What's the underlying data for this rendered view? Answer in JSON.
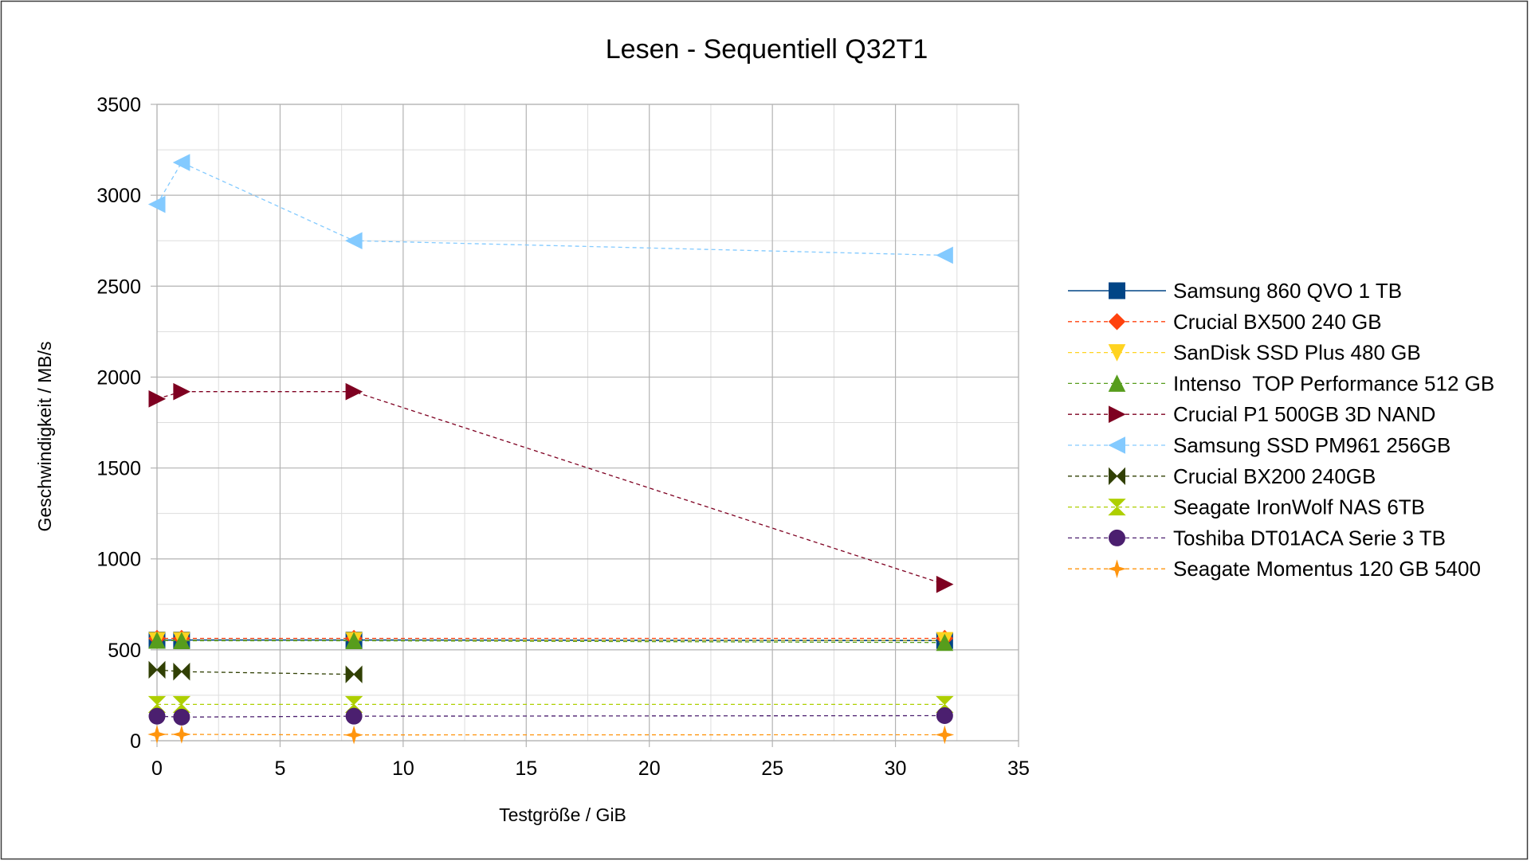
{
  "chart_data": {
    "type": "line",
    "title": "Lesen - Sequentiell Q32T1",
    "xlabel": "Testgröße / GiB",
    "ylabel": "Geschwindigkeit / MB/s",
    "xlim": [
      0,
      35
    ],
    "ylim": [
      0,
      3500
    ],
    "x_ticks": [
      0,
      5,
      10,
      15,
      20,
      25,
      30,
      35
    ],
    "y_ticks": [
      0,
      500,
      1000,
      1500,
      2000,
      2500,
      3000,
      3500
    ],
    "x_tick_labels": [
      "0",
      "5",
      "10",
      "15",
      "20",
      "25",
      "30",
      "35"
    ],
    "y_tick_labels": [
      "0",
      "500",
      "1000",
      "1500",
      "2000",
      "2500",
      "3000",
      "3500"
    ],
    "grid": true,
    "legend_position": "right",
    "x": [
      0,
      1,
      8,
      32
    ],
    "series": [
      {
        "name": "Samsung 860 QVO 1 TB",
        "color": "#004586",
        "marker": "square",
        "line": "solid",
        "values": [
          554,
          554,
          554,
          551
        ]
      },
      {
        "name": "Crucial BX500 240 GB",
        "color": "#ff420e",
        "marker": "diamond",
        "line": "dashed",
        "values": [
          563,
          563,
          563,
          563
        ]
      },
      {
        "name": "SanDisk SSD Plus 480 GB",
        "color": "#ffd320",
        "marker": "triangle-down",
        "line": "dashed",
        "values": [
          552,
          552,
          552,
          552
        ]
      },
      {
        "name": "Intenso  TOP Performance 512 GB",
        "color": "#579d1c",
        "marker": "triangle-up",
        "line": "dashed",
        "values": [
          552,
          550,
          550,
          540
        ]
      },
      {
        "name": "Crucial P1 500GB 3D NAND",
        "color": "#7e0021",
        "marker": "triangle-right",
        "line": "dashed",
        "values": [
          1880,
          1920,
          1920,
          860
        ]
      },
      {
        "name": "Samsung SSD PM961 256GB",
        "color": "#83caff",
        "marker": "triangle-left",
        "line": "dashed",
        "values": [
          2950,
          3180,
          2750,
          2670
        ]
      },
      {
        "name": "Crucial BX200 240GB",
        "color": "#314004",
        "marker": "bowtie",
        "line": "dashed",
        "values": [
          390,
          380,
          365,
          null
        ]
      },
      {
        "name": "Seagate IronWolf NAS 6TB",
        "color": "#aecf00",
        "marker": "hourglass",
        "line": "dashed",
        "values": [
          200,
          200,
          200,
          200
        ]
      },
      {
        "name": "Toshiba DT01ACA Serie 3 TB",
        "color": "#4b1f6f",
        "marker": "circle",
        "line": "dashed",
        "values": [
          135,
          130,
          135,
          138
        ]
      },
      {
        "name": "Seagate Momentus 120 GB 5400",
        "color": "#ff950e",
        "marker": "star",
        "line": "dashed",
        "values": [
          35,
          35,
          32,
          33
        ]
      }
    ]
  }
}
